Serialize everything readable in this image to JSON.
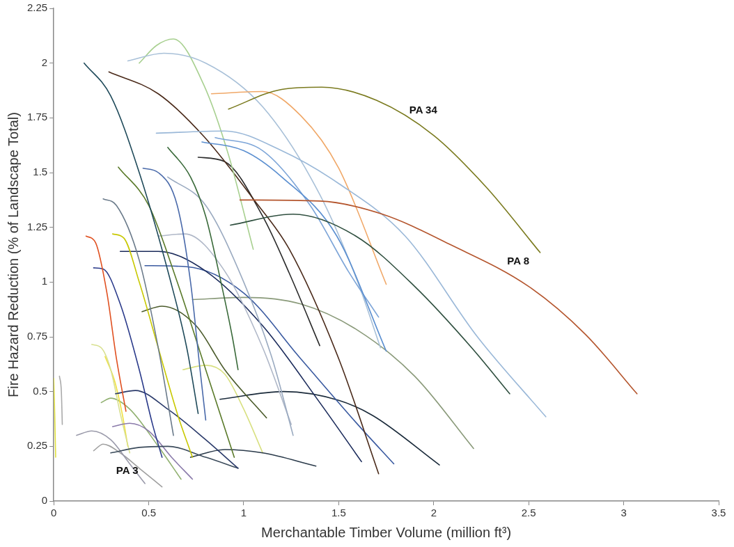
{
  "chart_data": {
    "type": "line",
    "xlabel": "Merchantable Timber Volume (million ft³)",
    "ylabel": "Fire Hazard Reduction (% of Landscape Total)",
    "xlim": [
      0,
      3.5
    ],
    "xticks": [
      0,
      0.5,
      1,
      1.5,
      2,
      2.5,
      3,
      3.5
    ],
    "ylim": [
      0,
      2.25
    ],
    "yticks": [
      0,
      0.25,
      0.5,
      0.75,
      1,
      1.25,
      1.5,
      1.75,
      2,
      2.25
    ],
    "grid": false,
    "legend": false,
    "marker": "none",
    "line_style": "solid",
    "series": [
      {
        "name": "PA 34",
        "color": "#7a7a1e",
        "x": [
          0.92,
          1.2,
          1.41,
          1.7,
          2.0,
          2.28,
          2.56
        ],
        "values": [
          1.79,
          1.88,
          1.89,
          1.83,
          1.67,
          1.43,
          1.135
        ]
      },
      {
        "name": "PA 8",
        "color": "#b4552d",
        "x": [
          0.98,
          1.4,
          1.73,
          2.09,
          2.5,
          2.8,
          3.07
        ],
        "values": [
          1.375,
          1.37,
          1.31,
          1.17,
          0.98,
          0.76,
          0.49
        ]
      },
      {
        "color": "#2f4f3f",
        "x": [
          0.93,
          1.26,
          1.59,
          1.9,
          2.2,
          2.4
        ],
        "values": [
          1.26,
          1.31,
          1.21,
          0.98,
          0.7,
          0.49
        ]
      },
      {
        "color": "#9ab8d8",
        "x": [
          0.54,
          0.9,
          1.2,
          1.5,
          1.85,
          2.23,
          2.59
        ],
        "values": [
          1.68,
          1.69,
          1.6,
          1.45,
          1.21,
          0.75,
          0.385
        ]
      },
      {
        "color": "#5b8fd0",
        "x": [
          0.78,
          1.0,
          1.2,
          1.49,
          1.75
        ],
        "values": [
          1.64,
          1.6,
          1.48,
          1.21,
          0.685
        ]
      },
      {
        "color": "#7da5d8",
        "x": [
          0.85,
          1.1,
          1.35,
          1.55,
          1.71
        ],
        "values": [
          1.66,
          1.6,
          1.35,
          1.05,
          0.84
        ]
      },
      {
        "color": "#f0a868",
        "x": [
          0.83,
          1.1,
          1.3,
          1.5,
          1.75
        ],
        "values": [
          1.86,
          1.87,
          1.76,
          1.52,
          0.99
        ]
      },
      {
        "color": "#a8c0d8",
        "x": [
          0.39,
          0.58,
          0.8,
          1.1,
          1.4,
          1.6,
          1.72
        ],
        "values": [
          2.01,
          2.045,
          2.0,
          1.8,
          1.4,
          1.0,
          0.7
        ]
      },
      {
        "color": "#a8d090",
        "x": [
          0.45,
          0.54,
          0.63,
          0.79,
          0.92,
          1.05
        ],
        "values": [
          2.0,
          2.08,
          2.11,
          1.9,
          1.58,
          1.15
        ]
      },
      {
        "color": "#4a2a1a",
        "x": [
          0.29,
          0.55,
          0.79,
          1.05,
          1.24,
          1.5,
          1.71
        ],
        "values": [
          1.96,
          1.86,
          1.665,
          1.38,
          1.15,
          0.65,
          0.125
        ]
      },
      {
        "color": "#2a2a2a",
        "x": [
          0.76,
          0.9,
          1.1,
          1.24,
          1.4
        ],
        "values": [
          1.57,
          1.55,
          1.3,
          1.04,
          0.71
        ]
      },
      {
        "color": "#1f4a5a",
        "x": [
          0.16,
          0.3,
          0.45,
          0.61,
          0.7,
          0.76
        ],
        "values": [
          2.0,
          1.85,
          1.5,
          1.02,
          0.7,
          0.4
        ]
      },
      {
        "color": "#3a6a3a",
        "x": [
          0.6,
          0.72,
          0.8,
          0.88,
          0.94,
          0.97
        ],
        "values": [
          1.615,
          1.48,
          1.3,
          1.0,
          0.75,
          0.6
        ]
      },
      {
        "color": "#4a6aaa",
        "x": [
          0.47,
          0.55,
          0.65,
          0.72,
          0.77,
          0.8
        ],
        "values": [
          1.52,
          1.5,
          1.35,
          1.0,
          0.6,
          0.37
        ]
      },
      {
        "color": "#5a7a2a",
        "x": [
          0.34,
          0.5,
          0.65,
          0.8,
          0.95
        ],
        "values": [
          1.525,
          1.35,
          1.0,
          0.6,
          0.2
        ]
      },
      {
        "color": "#6a7a8a",
        "x": [
          0.26,
          0.33,
          0.45,
          0.55,
          0.63
        ],
        "values": [
          1.38,
          1.35,
          1.1,
          0.7,
          0.3
        ]
      },
      {
        "color": "#9aaac0",
        "x": [
          0.6,
          0.8,
          1.0,
          1.15,
          1.26
        ],
        "values": [
          1.48,
          1.35,
          1.0,
          0.65,
          0.3
        ]
      },
      {
        "color": "#b0b8c8",
        "x": [
          0.55,
          0.69,
          0.9,
          1.1,
          1.25
        ],
        "values": [
          1.21,
          1.22,
          1.05,
          0.7,
          0.35
        ]
      },
      {
        "color": "#e05020",
        "x": [
          0.17,
          0.22,
          0.28,
          0.33,
          0.38
        ],
        "values": [
          1.21,
          1.18,
          0.95,
          0.65,
          0.41
        ]
      },
      {
        "color": "#c8c800",
        "x": [
          0.31,
          0.37,
          0.45,
          0.55,
          0.65,
          0.73
        ],
        "values": [
          1.22,
          1.2,
          1.0,
          0.7,
          0.4,
          0.2
        ]
      },
      {
        "color": "#2a3a8a",
        "x": [
          0.21,
          0.26,
          0.35,
          0.45,
          0.52,
          0.57
        ],
        "values": [
          1.065,
          1.06,
          0.9,
          0.6,
          0.35,
          0.2
        ]
      },
      {
        "color": "#1a2a5a",
        "x": [
          0.35,
          0.55,
          0.8,
          1.1,
          1.4,
          1.62
        ],
        "values": [
          1.14,
          1.14,
          1.05,
          0.8,
          0.45,
          0.18
        ]
      },
      {
        "color": "#3a5aa0",
        "x": [
          0.48,
          0.7,
          1.0,
          1.3,
          1.6,
          1.79
        ],
        "values": [
          1.075,
          1.07,
          0.95,
          0.65,
          0.35,
          0.17
        ]
      },
      {
        "color": "#8a9a7a",
        "x": [
          0.73,
          1.0,
          1.3,
          1.6,
          1.9,
          2.21
        ],
        "values": [
          0.92,
          0.93,
          0.9,
          0.78,
          0.57,
          0.24
        ]
      },
      {
        "color": "#4a5a2a",
        "x": [
          0.465,
          0.57,
          0.75,
          0.9,
          1.12
        ],
        "values": [
          0.865,
          0.89,
          0.8,
          0.6,
          0.38
        ]
      },
      {
        "color": "#1a2a3a",
        "x": [
          0.875,
          1.21,
          1.5,
          1.68,
          2.03
        ],
        "values": [
          0.465,
          0.5,
          0.46,
          0.39,
          0.165
        ]
      },
      {
        "color": "#2a3a6a",
        "x": [
          0.325,
          0.43,
          0.6,
          0.8,
          0.97
        ],
        "values": [
          0.49,
          0.505,
          0.42,
          0.28,
          0.15
        ]
      },
      {
        "color": "#3a4a5a",
        "x": [
          0.3,
          0.45,
          0.6,
          0.8,
          0.97
        ],
        "values": [
          0.22,
          0.245,
          0.25,
          0.2,
          0.15
        ]
      },
      {
        "color": "#2a3a4a",
        "x": [
          0.72,
          0.9,
          1.1,
          1.38
        ],
        "values": [
          0.2,
          0.235,
          0.22,
          0.16
        ]
      },
      {
        "color": "#9a9aaa",
        "x": [
          0.12,
          0.2,
          0.3,
          0.4,
          0.48
        ],
        "values": [
          0.3,
          0.32,
          0.28,
          0.17,
          0.08
        ]
      },
      {
        "color": "#8a7aaa",
        "x": [
          0.31,
          0.4,
          0.5,
          0.62,
          0.73
        ],
        "values": [
          0.34,
          0.355,
          0.32,
          0.2,
          0.1
        ]
      },
      {
        "color": "#d8e080",
        "x": [
          0.68,
          0.8,
          0.9,
          1.0,
          1.1
        ],
        "values": [
          0.6,
          0.62,
          0.58,
          0.42,
          0.22
        ]
      },
      {
        "color": "#d8e090",
        "x": [
          0.2,
          0.25,
          0.3,
          0.35,
          0.4
        ],
        "values": [
          0.715,
          0.7,
          0.6,
          0.4,
          0.22
        ]
      },
      {
        "color": "#f0e040",
        "x": [
          0.27,
          0.32,
          0.36,
          0.39
        ],
        "values": [
          0.66,
          0.55,
          0.4,
          0.25
        ]
      },
      {
        "color": "#aaaaaa",
        "x": [
          0.03,
          0.04,
          0.045
        ],
        "values": [
          0.57,
          0.5,
          0.35
        ]
      },
      {
        "color": "#e0e040",
        "x": [
          0.0,
          0.005,
          0.01
        ],
        "values": [
          0.56,
          0.4,
          0.2
        ]
      },
      {
        "name": "PA 3",
        "color": "#a0a0a0",
        "x": [
          0.21,
          0.26,
          0.35,
          0.45,
          0.57
        ],
        "values": [
          0.23,
          0.26,
          0.22,
          0.15,
          0.065
        ]
      },
      {
        "color": "#90b070",
        "x": [
          0.25,
          0.3,
          0.4,
          0.55,
          0.67
        ],
        "values": [
          0.45,
          0.47,
          0.42,
          0.25,
          0.1
        ]
      }
    ]
  }
}
